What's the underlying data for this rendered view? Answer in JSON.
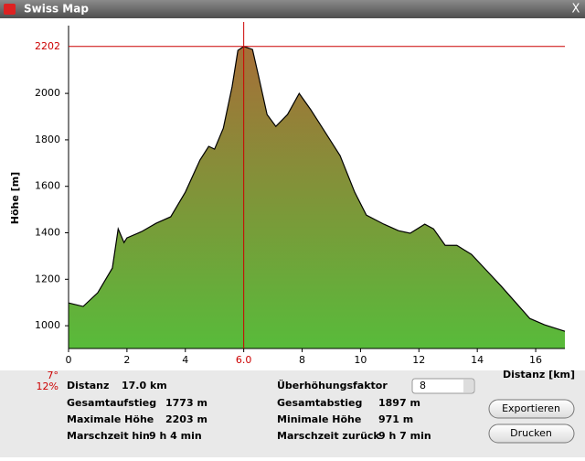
{
  "window": {
    "title": "Swiss Map",
    "close": "X"
  },
  "chart_data": {
    "type": "area",
    "y_label": "Höhe [m]",
    "x_label": "Distanz [km]",
    "x": [
      0,
      0.5,
      1.0,
      1.5,
      1.7,
      1.9,
      2.0,
      2.5,
      3.0,
      3.5,
      4.0,
      4.5,
      4.8,
      5.0,
      5.3,
      5.6,
      5.8,
      6.0,
      6.3,
      6.5,
      6.8,
      7.1,
      7.5,
      7.9,
      8.3,
      8.8,
      9.3,
      9.8,
      10.2,
      10.8,
      11.3,
      11.7,
      12.2,
      12.5,
      12.9,
      13.3,
      13.8,
      14.3,
      14.8,
      15.3,
      15.8,
      16.3,
      17.0
    ],
    "series": [
      {
        "name": "Höhe",
        "color": "#000000",
        "values": [
          1098,
          1083,
          1142,
          1248,
          1417,
          1358,
          1378,
          1405,
          1441,
          1469,
          1575,
          1713,
          1772,
          1760,
          1850,
          2028,
          2185,
          2202,
          2189,
          2079,
          1909,
          1858,
          1909,
          2000,
          1929,
          1831,
          1732,
          1575,
          1476,
          1437,
          1409,
          1398,
          1437,
          1417,
          1346,
          1346,
          1307,
          1240,
          1173,
          1102,
          1031,
          1004,
          976
        ]
      }
    ],
    "xlim": [
      0,
      17
    ],
    "ylim": [
      902,
      2276
    ],
    "xticks": [
      0,
      2,
      4,
      6,
      8,
      10,
      12,
      14,
      16
    ],
    "yticks": [
      1000,
      1200,
      1400,
      1600,
      1800,
      2000
    ],
    "cursor": {
      "value": 6,
      "label": "6.0"
    },
    "marker_y": 2202,
    "fill_top": "#a66f38",
    "fill_bottom": "#58bb3a",
    "cursor_color": "#cc0000"
  },
  "info": {
    "slope_deg": "7°",
    "slope_pct": "12%",
    "left": [
      {
        "label": "Distanz",
        "value": "17.0 km"
      },
      {
        "label": "Gesamtaufstieg",
        "value": "1773 m"
      },
      {
        "label": "Maximale Höhe",
        "value": "2203 m"
      },
      {
        "label": "Marschzeit hin",
        "value": "9 h 4 min"
      }
    ],
    "right": [
      {
        "label": "Überhöhungsfaktor",
        "value": "8"
      },
      {
        "label": "Gesamtabstieg",
        "value": "1897 m"
      },
      {
        "label": "Minimale Höhe",
        "value": "971 m"
      },
      {
        "label": "Marschzeit zurück",
        "value": "9 h 7 min"
      }
    ]
  },
  "buttons": [
    "Exportieren",
    "Drucken"
  ]
}
